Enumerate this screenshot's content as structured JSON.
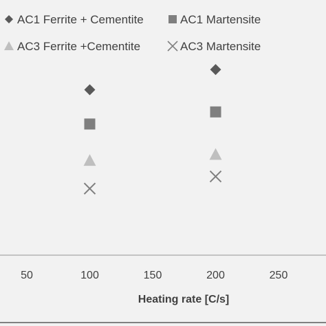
{
  "chart_data": {
    "type": "scatter",
    "title": "",
    "xlabel": "Heating rate [C/s]",
    "ylabel": "",
    "xlim": [
      0,
      250
    ],
    "xticks": [
      50,
      100,
      150,
      200,
      250
    ],
    "grid": false,
    "legend_position": "top",
    "series": [
      {
        "name": "AC1 Ferrite + Cementite",
        "marker": "diamond",
        "color": "#595959",
        "points": [
          {
            "x": 100,
            "y": 0.82
          },
          {
            "x": 200,
            "y": 0.92
          }
        ]
      },
      {
        "name": "AC1 Martensite",
        "marker": "square",
        "color": "#7f7f7f",
        "points": [
          {
            "x": 100,
            "y": 0.65
          },
          {
            "x": 200,
            "y": 0.71
          }
        ]
      },
      {
        "name": "AC3 Ferrite +Cementite",
        "marker": "triangle",
        "color": "#bfbfbf",
        "points": [
          {
            "x": 100,
            "y": 0.47
          },
          {
            "x": 200,
            "y": 0.5
          }
        ]
      },
      {
        "name": "AC3 Martensite",
        "marker": "x",
        "color": "#7f7f7f",
        "points": [
          {
            "x": 100,
            "y": 0.33
          },
          {
            "x": 200,
            "y": 0.39
          }
        ]
      }
    ]
  }
}
